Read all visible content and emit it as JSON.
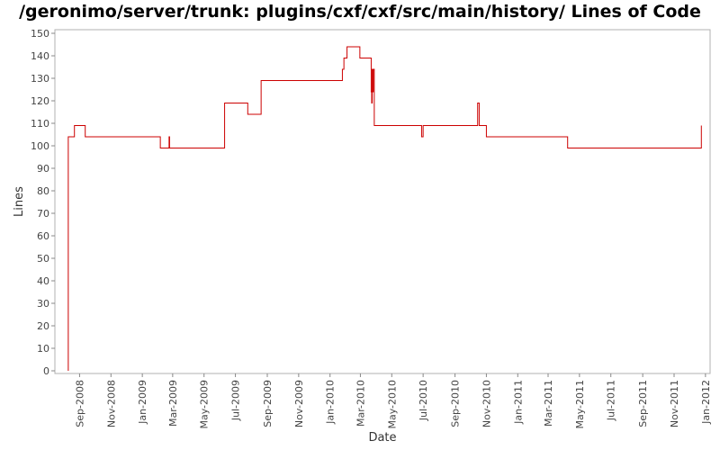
{
  "chart_data": {
    "type": "line",
    "title": "/geronimo/server/trunk: plugins/cxf/cxf/src/main/history/ Lines of Code",
    "xlabel": "Date",
    "ylabel": "Lines",
    "ylim": [
      0,
      150
    ],
    "yticks": [
      0,
      10,
      20,
      30,
      40,
      50,
      60,
      70,
      80,
      90,
      100,
      110,
      120,
      130,
      140,
      150
    ],
    "xlim": [
      "2008-07-15",
      "2012-01-10"
    ],
    "xticks": [
      "2008-09-01",
      "2008-11-01",
      "2009-01-01",
      "2009-03-01",
      "2009-05-01",
      "2009-07-01",
      "2009-09-01",
      "2009-11-01",
      "2010-01-01",
      "2010-03-01",
      "2010-05-01",
      "2010-07-01",
      "2010-09-01",
      "2010-11-01",
      "2011-01-01",
      "2011-03-01",
      "2011-05-01",
      "2011-07-01",
      "2011-09-01",
      "2011-11-01",
      "2012-01-01"
    ],
    "xtick_labels": [
      "Sep-2008",
      "Nov-2008",
      "Jan-2009",
      "Mar-2009",
      "May-2009",
      "Jul-2009",
      "Sep-2009",
      "Nov-2009",
      "Jan-2010",
      "Mar-2010",
      "May-2010",
      "Jul-2010",
      "Sep-2010",
      "Nov-2010",
      "Jan-2011",
      "Mar-2011",
      "May-2011",
      "Jul-2011",
      "Sep-2011",
      "Nov-2011",
      "Jan-2012"
    ],
    "grid": false,
    "series": [
      {
        "color": "#cc0000",
        "step": true,
        "points": [
          [
            "2008-08-10",
            0
          ],
          [
            "2008-08-10",
            104
          ],
          [
            "2008-08-22",
            109
          ],
          [
            "2008-09-12",
            104
          ],
          [
            "2009-02-05",
            99
          ],
          [
            "2009-02-22",
            104
          ],
          [
            "2009-02-23",
            99
          ],
          [
            "2009-06-10",
            119
          ],
          [
            "2009-07-25",
            114
          ],
          [
            "2009-08-20",
            129
          ],
          [
            "2010-01-25",
            134
          ],
          [
            "2010-01-28",
            139
          ],
          [
            "2010-02-03",
            144
          ],
          [
            "2010-02-28",
            139
          ],
          [
            "2010-03-22",
            124
          ],
          [
            "2010-03-23",
            119
          ],
          [
            "2010-03-24",
            134
          ],
          [
            "2010-03-25",
            124
          ],
          [
            "2010-03-26",
            134
          ],
          [
            "2010-03-28",
            109
          ],
          [
            "2010-06-28",
            104
          ],
          [
            "2010-07-01",
            109
          ],
          [
            "2010-10-15",
            119
          ],
          [
            "2010-10-18",
            109
          ],
          [
            "2010-11-01",
            104
          ],
          [
            "2011-04-08",
            99
          ],
          [
            "2011-12-24",
            109
          ]
        ]
      }
    ]
  }
}
